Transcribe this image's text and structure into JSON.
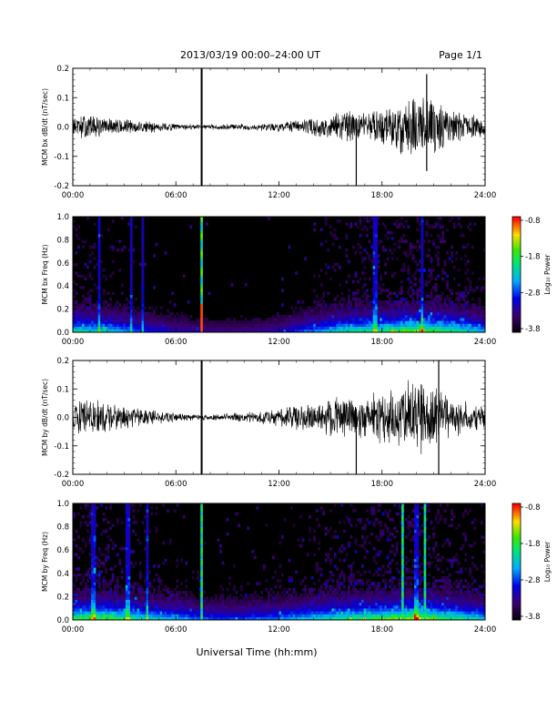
{
  "header": {
    "title": "2013/03/19  00:00–24:00 UT",
    "page": "Page 1/1"
  },
  "footer": {
    "xlabel": "Universal Time (hh:mm)"
  },
  "chart_data": [
    {
      "type": "line",
      "ylabel": "MCM bx dB/dt (nT/sec)",
      "xlim": [
        0,
        24
      ],
      "ylim": [
        -0.2,
        0.2
      ],
      "yticks": [
        "0.2",
        "0.1",
        "0.0",
        "-0.1",
        "-0.2"
      ],
      "xticks": [
        "00:00",
        "06:00",
        "12:00",
        "18:00",
        "24:00"
      ],
      "envelope_hours": [
        0,
        1,
        2,
        3,
        4,
        5,
        6,
        7,
        8,
        9,
        10,
        11,
        12,
        13,
        14,
        15,
        16,
        17,
        18,
        19,
        20,
        21,
        22,
        23,
        24
      ],
      "envelope_amplitude": [
        0.03,
        0.04,
        0.03,
        0.025,
        0.02,
        0.015,
        0.01,
        0.008,
        0.008,
        0.01,
        0.01,
        0.012,
        0.015,
        0.02,
        0.03,
        0.04,
        0.05,
        0.05,
        0.06,
        0.08,
        0.1,
        0.09,
        0.05,
        0.04,
        0.03
      ],
      "spikes": [
        {
          "hour": 7.5,
          "min": -0.2,
          "max": 0.2
        },
        {
          "hour": 16.5,
          "min": -0.2,
          "max": 0.03
        },
        {
          "hour": 20.6,
          "min": -0.15,
          "max": 0.18
        }
      ]
    },
    {
      "type": "heatmap",
      "ylabel": "MCM bx Freq (Hz)",
      "xlim": [
        0,
        24
      ],
      "ylim": [
        0,
        1.0
      ],
      "yticks": [
        "1.0",
        "0.8",
        "0.6",
        "0.4",
        "0.2",
        "0.0"
      ],
      "xticks": [
        "00:00",
        "06:00",
        "12:00",
        "18:00",
        "24:00"
      ],
      "colorbar": {
        "label": "Log₁₀ Power",
        "ticks": [
          "-0.8",
          "-1.8",
          "-2.8",
          "-3.8"
        ],
        "range": [
          -3.8,
          -0.8
        ]
      },
      "activity_hours": [
        0,
        2,
        4,
        6,
        8,
        10,
        12,
        14,
        16,
        18,
        20,
        22,
        24
      ],
      "activity_level": [
        0.5,
        0.45,
        0.3,
        0.2,
        0.15,
        0.15,
        0.2,
        0.35,
        0.5,
        0.55,
        0.65,
        0.55,
        0.4
      ],
      "bright_columns_hours": [
        7.5
      ],
      "faint_columns_hours": [
        1.5,
        3.4,
        4.1,
        17.6,
        20.3
      ]
    },
    {
      "type": "line",
      "ylabel": "MCM by dB/dt (nT/sec)",
      "xlim": [
        0,
        24
      ],
      "ylim": [
        -0.2,
        0.2
      ],
      "yticks": [
        "0.2",
        "0.1",
        "0.0",
        "-0.1",
        "-0.2"
      ],
      "xticks": [
        "00:00",
        "06:00",
        "12:00",
        "18:00",
        "24:00"
      ],
      "envelope_hours": [
        0,
        1,
        2,
        3,
        4,
        5,
        6,
        7,
        8,
        9,
        10,
        11,
        12,
        13,
        14,
        15,
        16,
        17,
        18,
        19,
        20,
        21,
        22,
        23,
        24
      ],
      "envelope_amplitude": [
        0.05,
        0.06,
        0.045,
        0.035,
        0.03,
        0.02,
        0.015,
        0.01,
        0.01,
        0.012,
        0.015,
        0.02,
        0.03,
        0.04,
        0.05,
        0.06,
        0.07,
        0.07,
        0.08,
        0.1,
        0.13,
        0.11,
        0.06,
        0.05,
        0.04
      ],
      "spikes": [
        {
          "hour": 7.5,
          "min": -0.2,
          "max": 0.2
        },
        {
          "hour": 16.5,
          "min": -0.2,
          "max": 0.03
        },
        {
          "hour": 21.3,
          "min": -0.2,
          "max": 0.2
        }
      ]
    },
    {
      "type": "heatmap",
      "ylabel": "MCM by Freq (Hz)",
      "xlim": [
        0,
        24
      ],
      "ylim": [
        0,
        1.0
      ],
      "yticks": [
        "1.0",
        "0.8",
        "0.6",
        "0.4",
        "0.2",
        "0.0"
      ],
      "xticks": [
        "00:00",
        "06:00",
        "12:00",
        "18:00",
        "24:00"
      ],
      "colorbar": {
        "label": "Log₁₀ Power",
        "ticks": [
          "-0.8",
          "-1.8",
          "-2.8",
          "-3.8"
        ],
        "range": [
          -3.8,
          -0.8
        ]
      },
      "activity_hours": [
        0,
        2,
        4,
        6,
        8,
        10,
        12,
        14,
        16,
        18,
        20,
        22,
        24
      ],
      "activity_level": [
        0.6,
        0.6,
        0.5,
        0.4,
        0.3,
        0.3,
        0.35,
        0.45,
        0.55,
        0.6,
        0.7,
        0.55,
        0.45
      ],
      "bright_columns_hours": [
        7.5,
        19.2,
        20.5
      ],
      "faint_columns_hours": [
        1.2,
        3.2,
        4.3,
        20.0
      ]
    }
  ]
}
